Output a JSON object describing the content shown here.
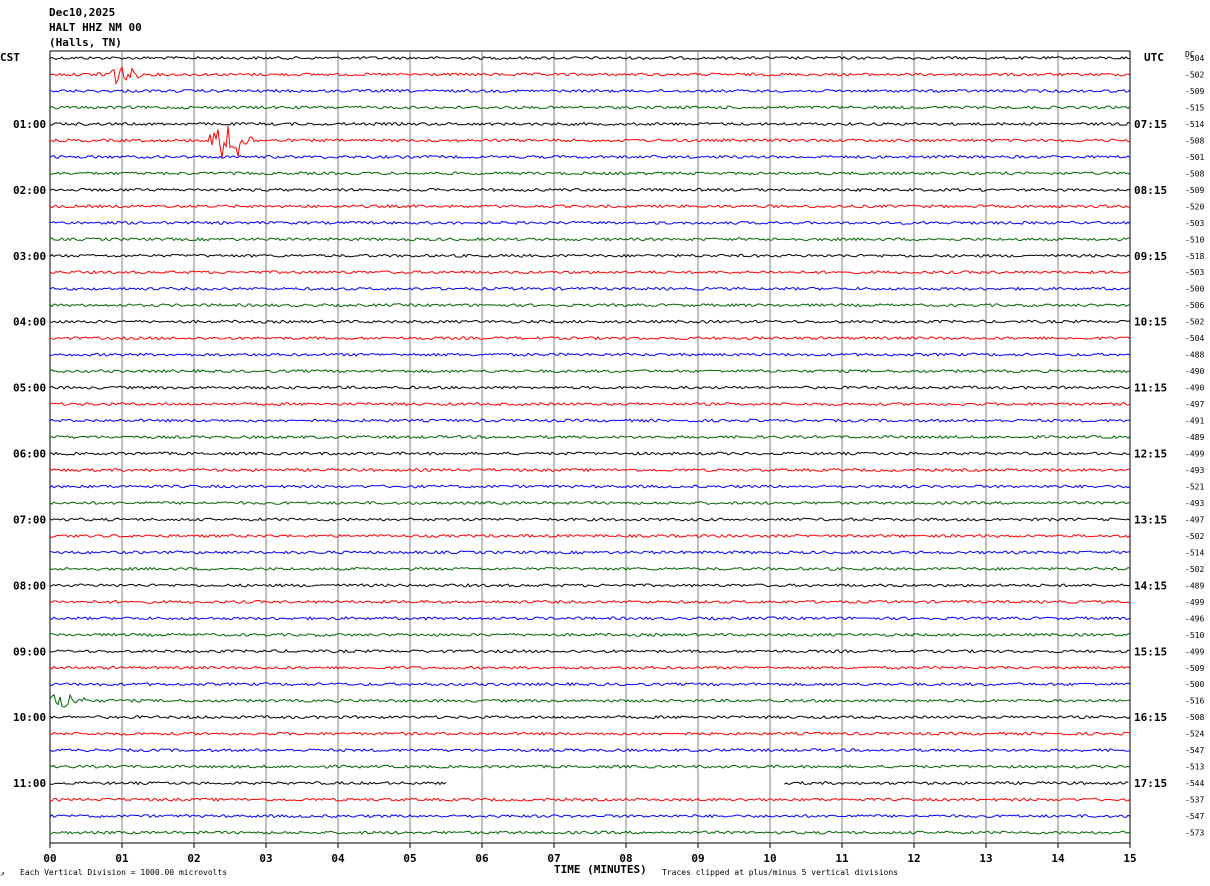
{
  "header": {
    "date": "Dec10,2025",
    "station": "HALT HHZ NM 00",
    "location": "(Halls, TN)"
  },
  "left_timezone": "CST",
  "right_timezone": "UTC",
  "dc_label": "DC",
  "footer": {
    "left_mark": "↗",
    "scale_note": "Each Vertical Division = 1000.00 microvolts",
    "xlabel": "TIME (MINUTES)",
    "clip_note": "Traces clipped at plus/minus 5 vertical divisions"
  },
  "colors": {
    "trace_cycle": [
      "#000000",
      "#ff0000",
      "#0000ff",
      "#006600"
    ],
    "grid": "#808080"
  },
  "chart_data": {
    "type": "line",
    "title": "HALT HHZ NM 00",
    "xlabel": "TIME (MINUTES)",
    "x_ticks": [
      "00",
      "01",
      "02",
      "03",
      "04",
      "05",
      "06",
      "07",
      "08",
      "09",
      "10",
      "11",
      "12",
      "13",
      "14",
      "15"
    ],
    "xlim": [
      0,
      15
    ],
    "trace_minutes": 15,
    "left_hour_labels": [
      "01:00",
      "02:00",
      "03:00",
      "04:00",
      "05:00",
      "06:00",
      "07:00",
      "08:00",
      "09:00",
      "10:00",
      "11:00"
    ],
    "right_hour_labels": [
      "07:15",
      "08:15",
      "09:15",
      "10:15",
      "11:15",
      "12:15",
      "13:15",
      "14:15",
      "15:15",
      "16:15",
      "17:15"
    ],
    "dc_offsets": [
      "-504",
      "-502",
      "-509",
      "-515",
      "-514",
      "-508",
      "-501",
      "-508",
      "-509",
      "-520",
      "-503",
      "-510",
      "-518",
      "-503",
      "-500",
      "-506",
      "-502",
      "-504",
      "-488",
      "-490",
      "-490",
      "-497",
      "-491",
      "-489",
      "-499",
      "-493",
      "-521",
      "-493",
      "-497",
      "-502",
      "-514",
      "-502",
      "-489",
      "-499",
      "-496",
      "-510",
      "-499",
      "-509",
      "-500",
      "-516",
      "-508",
      "-524",
      "-547",
      "-513",
      "-544",
      "-537",
      "-547",
      "-573"
    ],
    "data_gaps": [
      {
        "trace": 44,
        "from_minute": 5.5,
        "to_minute": 10.2
      }
    ],
    "events": [
      {
        "trace": 5,
        "minute": 2.5,
        "amplitude_divisions": 1.5
      },
      {
        "trace": 1,
        "minute": 0.95,
        "amplitude_divisions": 0.6
      },
      {
        "trace": 39,
        "minute": 0.2,
        "amplitude_divisions": 0.5
      }
    ]
  }
}
